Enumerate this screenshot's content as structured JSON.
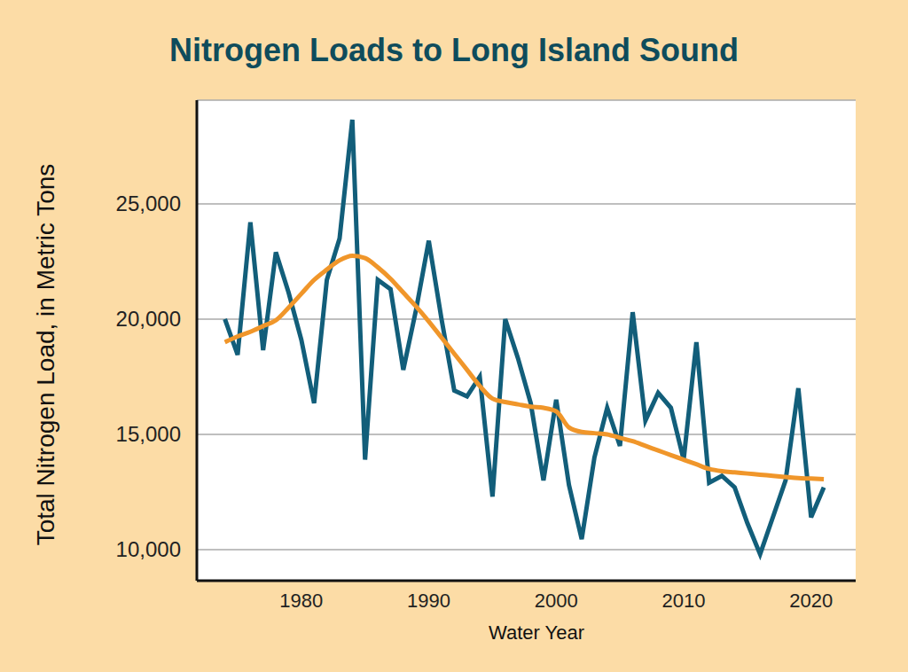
{
  "chart_data": {
    "type": "line",
    "title": "Nitrogen Loads to Long Island Sound",
    "x_label": "Water Year",
    "y_label": "Total Nitrogen Load, in Metric Tons",
    "x": [
      1974,
      1975,
      1976,
      1977,
      1978,
      1979,
      1980,
      1981,
      1982,
      1983,
      1984,
      1985,
      1986,
      1987,
      1988,
      1989,
      1990,
      1991,
      1992,
      1993,
      1994,
      1995,
      1996,
      1997,
      1998,
      1999,
      2000,
      2001,
      2002,
      2003,
      2004,
      2005,
      2006,
      2007,
      2008,
      2009,
      2010,
      2011,
      2012,
      2013,
      2014,
      2015,
      2016,
      2017,
      2018,
      2019,
      2020,
      2021
    ],
    "series": [
      {
        "color": "#125e7a",
        "line_style": "solid",
        "values": [
          20000,
          18450,
          24200,
          18650,
          22900,
          21150,
          19100,
          16350,
          21700,
          23500,
          28650,
          13900,
          21700,
          21300,
          17800,
          20400,
          23400,
          20000,
          16900,
          16650,
          17500,
          12300,
          20000,
          18300,
          16350,
          13000,
          16500,
          12800,
          10450,
          14000,
          16150,
          14500,
          20300,
          15600,
          16800,
          16150,
          13900,
          19000,
          12900,
          13200,
          12700,
          11150,
          9800,
          11400,
          13000,
          17000,
          11400,
          12700
        ]
      },
      {
        "color": "#f0962a",
        "line_style": "smooth",
        "values": [
          19000,
          19250,
          19450,
          19700,
          19950,
          20500,
          21100,
          21700,
          22150,
          22550,
          22750,
          22650,
          22250,
          21750,
          21150,
          20550,
          19900,
          19200,
          18500,
          17800,
          17100,
          16550,
          16400,
          16300,
          16200,
          16150,
          16000,
          15300,
          15100,
          15050,
          15000,
          14850,
          14700,
          14500,
          14300,
          14100,
          13900,
          13700,
          13500,
          13400,
          13350,
          13300,
          13250,
          13200,
          13150,
          13100,
          13080,
          13050
        ]
      }
    ],
    "xlim": [
      1971.8,
      2023.5
    ],
    "xticks": [
      1980,
      1990,
      2000,
      2010,
      2020
    ],
    "ylim": [
      8650,
      29500
    ],
    "yticks": [
      {
        "value": 10000,
        "label": "10,000"
      },
      {
        "value": 15000,
        "label": "15,000"
      },
      {
        "value": 20000,
        "label": "20,000"
      },
      {
        "value": 25000,
        "label": "25,000"
      }
    ],
    "grid": true
  }
}
